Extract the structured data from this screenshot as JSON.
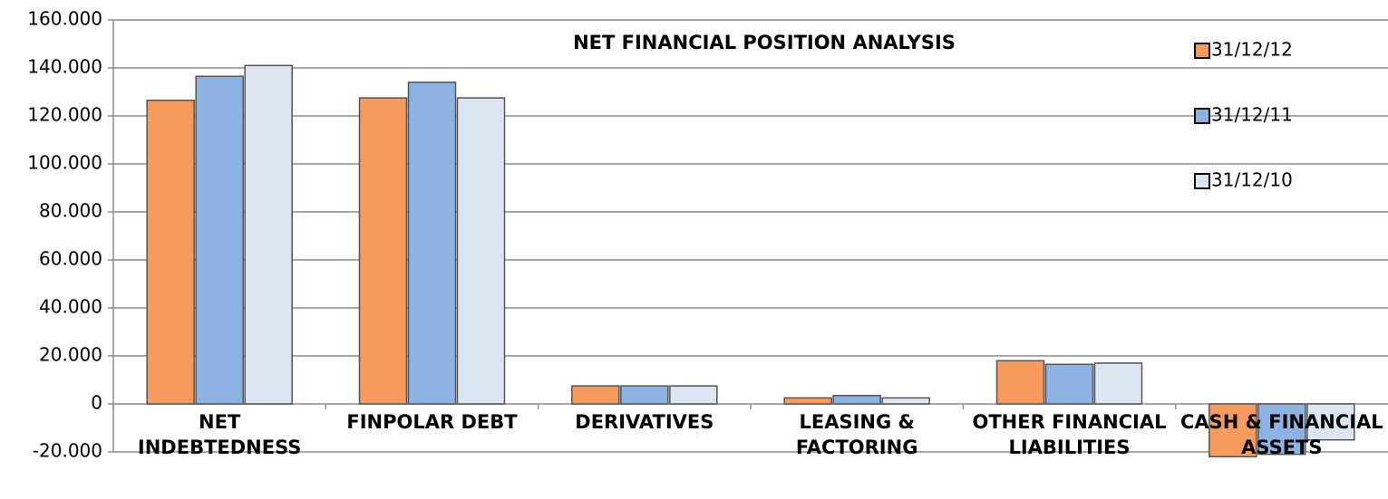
{
  "chart_data": {
    "type": "bar",
    "title": "NET FINANCIAL POSITION ANALYSIS",
    "categories": [
      "NET INDEBTEDNESS",
      "FINPOLAR DEBT",
      "DERIVATIVES",
      "LEASING & FACTORING",
      "OTHER FINANCIAL LIABILITIES",
      "CASH & FINANCIAL ASSETS"
    ],
    "series": [
      {
        "name": "31/12/12",
        "color": "#f79a5e",
        "values": [
          126500,
          127500,
          7500,
          2500,
          18000,
          -22000
        ]
      },
      {
        "name": "31/12/11",
        "color": "#8db3e2",
        "values": [
          136500,
          134000,
          7500,
          3500,
          16500,
          -21000
        ]
      },
      {
        "name": "31/12/10",
        "color": "#dce6f2",
        "values": [
          141000,
          127500,
          7500,
          2500,
          17000,
          -15000
        ]
      }
    ],
    "ylim": [
      -20000,
      160000
    ],
    "yticks": [
      {
        "value": -20000,
        "label": "-20.000"
      },
      0,
      {
        "value": 20000,
        "label": "20.000"
      },
      {
        "value": 40000,
        "label": "40.000"
      },
      {
        "value": 60000,
        "label": "60.000"
      },
      {
        "value": 80000,
        "label": "80.000"
      },
      {
        "value": 100000,
        "label": "100.000"
      },
      {
        "value": 120000,
        "label": "120.000"
      },
      {
        "value": 140000,
        "label": "140.000"
      },
      {
        "value": 160000,
        "label": "160.000"
      }
    ],
    "grid": true,
    "legend": "top-right"
  }
}
